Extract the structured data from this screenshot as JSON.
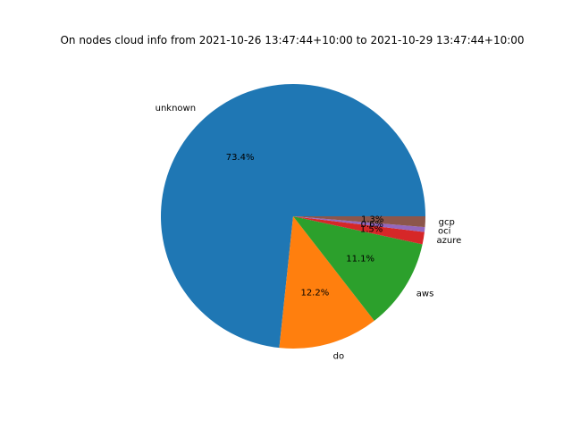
{
  "chart_data": {
    "type": "pie",
    "title": "On nodes cloud info from 2021-10-26 13:47:44+10:00 to 2021-10-29 13:47:44+10:00",
    "start_angle_deg": 0,
    "direction": "counterclockwise",
    "slices": [
      {
        "label": "unknown",
        "value": 73.4,
        "pct_label": "73.4%",
        "color": "#1f77b4"
      },
      {
        "label": "do",
        "value": 12.2,
        "pct_label": "12.2%",
        "color": "#ff7f0e"
      },
      {
        "label": "aws",
        "value": 11.1,
        "pct_label": "11.1%",
        "color": "#2ca02c"
      },
      {
        "label": "azure",
        "value": 1.5,
        "pct_label": "1.5%",
        "color": "#d62728"
      },
      {
        "label": "oci",
        "value": 0.6,
        "pct_label": "0.6%",
        "color": "#9467bd"
      },
      {
        "label": "gcp",
        "value": 1.3,
        "pct_label": "1.3%",
        "color": "#8c564b"
      }
    ]
  }
}
